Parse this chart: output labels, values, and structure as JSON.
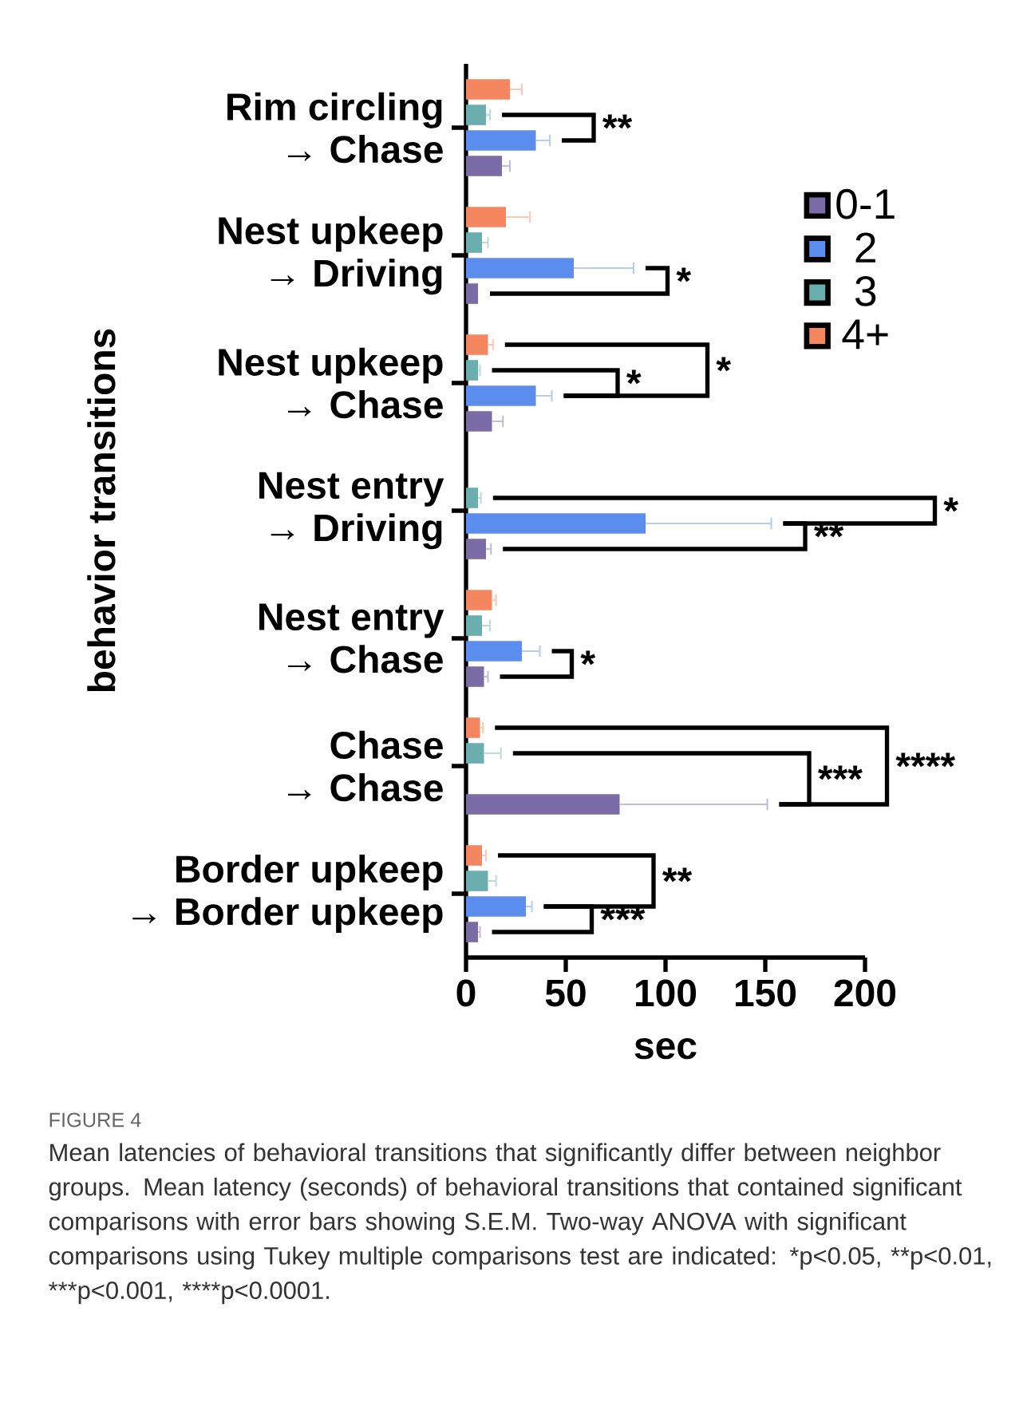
{
  "chart_data": {
    "type": "bar",
    "orientation": "horizontal",
    "xlabel": "sec",
    "ylabel": "behavior transitions",
    "categories": [
      "Rim circling\n→ Chase",
      "Nest upkeep\n→ Driving",
      "Nest upkeep\n→ Chase",
      "Nest entry\n→ Driving",
      "Nest entry\n→ Chase",
      "Chase\n→ Chase",
      "Border upkeep\n→ Border upkeep"
    ],
    "series": [
      {
        "name": "0-1",
        "color": "#7b6ca8",
        "values": [
          18,
          6,
          13,
          10,
          9,
          77,
          6
        ],
        "errors": [
          4,
          null,
          5.5,
          2.5,
          2,
          74,
          1
        ]
      },
      {
        "name": "2",
        "color": "#5b8def",
        "values": [
          35,
          54,
          35,
          90,
          28,
          null,
          30
        ],
        "errors": [
          7,
          30,
          8,
          63,
          9,
          null,
          3
        ]
      },
      {
        "name": "3",
        "color": "#6aaeae",
        "values": [
          10,
          8,
          6,
          6,
          8,
          9,
          11
        ],
        "errors": [
          2,
          3,
          1,
          1.5,
          4,
          8.5,
          4
        ]
      },
      {
        "name": "4+",
        "color": "#f4875f",
        "values": [
          22,
          20,
          11,
          null,
          13,
          7,
          8
        ],
        "errors": [
          6,
          12,
          2.5,
          null,
          2,
          1.5,
          2
        ]
      }
    ],
    "xlim": [
      0,
      200
    ],
    "xticks": [
      0,
      50,
      100,
      150,
      200
    ],
    "legend": "right",
    "grid": false,
    "annotations": [
      "**",
      "*",
      "*",
      "*",
      "*",
      "**",
      "*",
      "***",
      "****",
      "**",
      "***",
      "FIGURE 4",
      "Mean latencies of behavioral transitions that significantly differ between neighbor groups. Mean latency (seconds) of behavioral transitions that contained significant comparisons with error bars showing S.E.M. Two-way ANOVA with significant comparisons using Tukey multiple comparisons test are indicated: *p<0.05,",
      "**p<0.01,",
      "***p<0.001,",
      "****p<0.0001."
    ]
  }
}
